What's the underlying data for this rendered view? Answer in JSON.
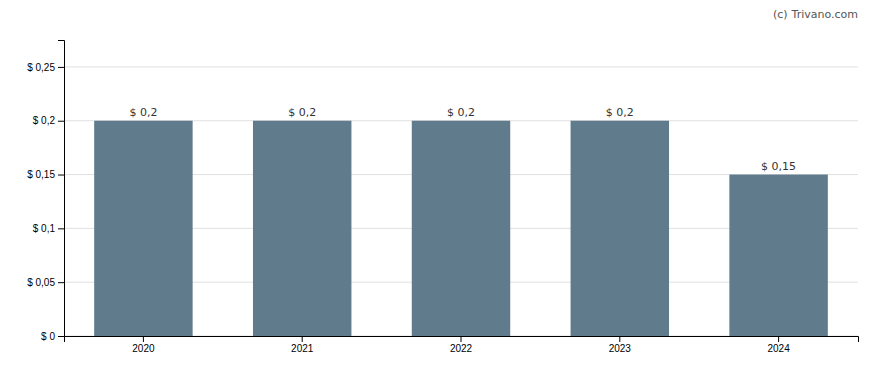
{
  "chart_data": {
    "type": "bar",
    "categories": [
      "2020",
      "2021",
      "2022",
      "2023",
      "2024"
    ],
    "values": [
      0.2,
      0.2,
      0.2,
      0.2,
      0.15
    ],
    "value_labels": [
      "$ 0,2",
      "$ 0,2",
      "$ 0,2",
      "$ 0,2",
      "$ 0,15"
    ],
    "data_labels": true,
    "color": "#607b8b",
    "ylim": [
      0,
      0.275
    ],
    "yticks": [
      {
        "value": 0,
        "label": "$ 0"
      },
      {
        "value": 0.05,
        "label": "$ 0,05"
      },
      {
        "value": 0.1,
        "label": "$ 0,1"
      },
      {
        "value": 0.15,
        "label": "$ 0,15"
      },
      {
        "value": 0.2,
        "label": "$ 0,2"
      },
      {
        "value": 0.25,
        "label": "$ 0,25"
      }
    ],
    "grid": true,
    "annotations": [
      "(c)",
      "Trivano.com"
    ]
  }
}
